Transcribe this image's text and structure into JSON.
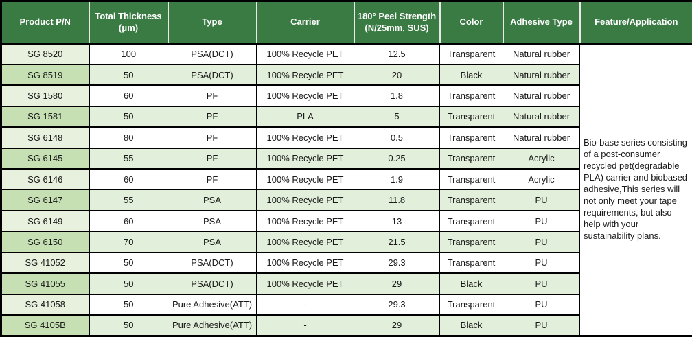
{
  "table": {
    "headers": [
      "Product P/N",
      "Total Thickness (μm)",
      "Type",
      "Carrier",
      "180° Peel Strength (N/25mm, SUS)",
      "Color",
      "Adhesive Type",
      "Feature/Application"
    ],
    "rows": [
      [
        "SG 8520",
        "100",
        "PSA(DCT)",
        "100% Recycle PET",
        "12.5",
        "Transparent",
        "Natural rubber"
      ],
      [
        "SG 8519",
        "50",
        "PSA(DCT)",
        "100% Recycle PET",
        "20",
        "Black",
        "Natural rubber"
      ],
      [
        "SG 1580",
        "60",
        "PF",
        "100% Recycle PET",
        "1.8",
        "Transparent",
        "Natural rubber"
      ],
      [
        "SG 1581",
        "50",
        "PF",
        "PLA",
        "5",
        "Transparent",
        "Natural rubber"
      ],
      [
        "SG 6148",
        "80",
        "PF",
        "100% Recycle PET",
        "0.5",
        "Transparent",
        "Natural rubber"
      ],
      [
        "SG 6145",
        "55",
        "PF",
        "100% Recycle PET",
        "0.25",
        "Transparent",
        "Acrylic"
      ],
      [
        "SG 6146",
        "60",
        "PF",
        "100% Recycle PET",
        "1.9",
        "Transparent",
        "Acrylic"
      ],
      [
        "SG 6147",
        "55",
        "PSA",
        "100% Recycle PET",
        "11.8",
        "Transparent",
        "PU"
      ],
      [
        "SG 6149",
        "60",
        "PSA",
        "100% Recycle PET",
        "13",
        "Transparent",
        "PU"
      ],
      [
        "SG 6150",
        "70",
        "PSA",
        "100% Recycle PET",
        "21.5",
        "Transparent",
        "PU"
      ],
      [
        "SG 41052",
        "50",
        "PSA(DCT)",
        "100% Recycle PET",
        "29.3",
        "Transparent",
        "PU"
      ],
      [
        "SG 41055",
        "50",
        "PSA(DCT)",
        "100% Recycle PET",
        "29",
        "Black",
        "PU"
      ],
      [
        "SG 41058",
        "50",
        "Pure Adhesive(ATT)",
        "-",
        "29.3",
        "Transparent",
        "PU"
      ],
      [
        "SG 4105B",
        "50",
        "Pure Adhesive(ATT)",
        "-",
        "29",
        "Black",
        "PU"
      ]
    ],
    "feature_text": "Bio-base series consisting of a post-consumer recycled pet(degradable PLA) carrier and  biobased adhesive,This series will not only meet your tape requirements, but also help with your sustainability plans."
  },
  "colors": {
    "header_bg": "#3a7b44",
    "header_text": "#ffffff",
    "band_light_green": "#e2efda",
    "band_first_col_dark": "#c6e0b4",
    "border": "#000000"
  }
}
